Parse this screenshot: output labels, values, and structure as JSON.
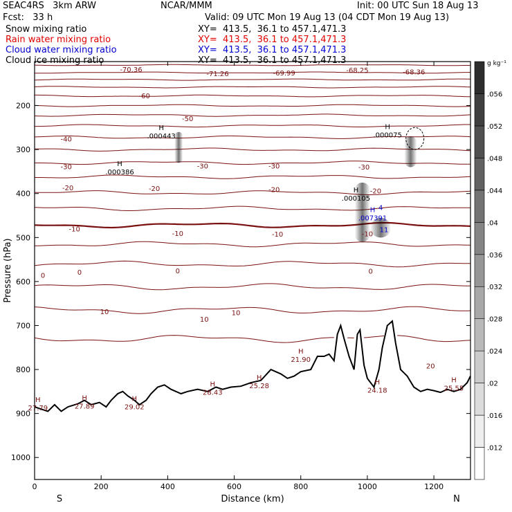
{
  "header": {
    "model": "SEAC4RS   3km ARW",
    "center": "NCAR/MMM",
    "init": "Init: 00 UTC Sun 18 Aug 13",
    "fcst": "Fcst:   33 h",
    "valid": "Valid: 09 UTC Mon 19 Aug 13 (04 CDT Mon 19 Aug 13)",
    "fields": [
      {
        "label": "Snow mixing ratio",
        "xy": "XY=  413.5,  36.1 to 457.1,471.3",
        "color": "#000000"
      },
      {
        "label": "Rain water mixing ratio",
        "xy": "XY=  413.5,  36.1 to 457.1,471.3",
        "color": "#e00000"
      },
      {
        "label": "Cloud water mixing ratio",
        "xy": "XY=  413.5,  36.1 to 457.1,471.3",
        "color": "#0000d0"
      },
      {
        "label": "Cloud ice mixing ratio",
        "xy": "XY=  413.5,  36.1 to 457.1,471.3",
        "color": "#000000"
      }
    ]
  },
  "chart_data": {
    "type": "cross-section",
    "xlabel": "Distance (km)",
    "ylabel": "Pressure (hPa)",
    "xlim": [
      0,
      1310
    ],
    "ylim": [
      1050,
      100
    ],
    "x_ticks": [
      0,
      200,
      400,
      600,
      800,
      1000,
      1200
    ],
    "y_ticks": [
      200,
      300,
      400,
      500,
      600,
      700,
      800,
      900,
      1000
    ],
    "x_end_labels": {
      "left": "S",
      "right": "N"
    },
    "colorbar": {
      "unit": "g kg⁻¹",
      "ticks": [
        0.012,
        0.016,
        0.02,
        0.024,
        0.028,
        0.032,
        0.036,
        0.04,
        0.044,
        0.048,
        0.052,
        0.056
      ],
      "tick_labels": [
        ".012",
        ".016",
        ".02",
        ".024",
        ".028",
        ".032",
        ".036",
        ".04",
        ".044",
        ".048",
        ".052",
        ".056"
      ]
    },
    "temperature_contours": {
      "color": "#7a1010",
      "interval_c": 5,
      "levels": [
        {
          "t": -70,
          "p": 108
        },
        {
          "t": -65,
          "p": 125
        },
        {
          "t": -60,
          "p": 141
        },
        {
          "t": -55,
          "p": 158
        },
        {
          "t": -50,
          "p": 178
        },
        {
          "t": -45,
          "p": 200
        },
        {
          "t": -40,
          "p": 222
        },
        {
          "t": -35,
          "p": 246
        },
        {
          "t": -30,
          "p": 272
        },
        {
          "t": -25,
          "p": 300
        },
        {
          "t": -20,
          "p": 330
        },
        {
          "t": -15,
          "p": 362
        },
        {
          "t": -10,
          "p": 398
        },
        {
          "t": -5,
          "p": 434
        },
        {
          "t": 0,
          "p": 472
        },
        {
          "t": 5,
          "p": 515
        },
        {
          "t": 10,
          "p": 560
        },
        {
          "t": 15,
          "p": 612
        },
        {
          "t": 20,
          "p": 665
        },
        {
          "t": 25,
          "p": 730
        }
      ],
      "labels": [
        {
          "text": "-70.36",
          "x": 290,
          "p": 117
        },
        {
          "text": "-71.26",
          "x": 550,
          "p": 127
        },
        {
          "text": "-69.99",
          "x": 750,
          "p": 125
        },
        {
          "text": "-68.25",
          "x": 970,
          "p": 119
        },
        {
          "text": "-68.36",
          "x": 1140,
          "p": 123
        },
        {
          "text": "-60",
          "x": 330,
          "p": 177
        },
        {
          "text": "-50",
          "x": 460,
          "p": 229
        },
        {
          "text": "-40",
          "x": 95,
          "p": 275
        },
        {
          "text": "-30",
          "x": 95,
          "p": 338
        },
        {
          "text": "-30",
          "x": 505,
          "p": 337
        },
        {
          "text": "-30",
          "x": 720,
          "p": 337
        },
        {
          "text": "-30",
          "x": 990,
          "p": 339
        },
        {
          "text": "-20",
          "x": 100,
          "p": 386
        },
        {
          "text": "-20",
          "x": 360,
          "p": 388
        },
        {
          "text": "-20",
          "x": 720,
          "p": 390
        },
        {
          "text": "-20",
          "x": 1025,
          "p": 393
        },
        {
          "text": "-10",
          "x": 120,
          "p": 480
        },
        {
          "text": "-10",
          "x": 430,
          "p": 490
        },
        {
          "text": "-10",
          "x": 730,
          "p": 492
        },
        {
          "text": "-10",
          "x": 1000,
          "p": 491
        },
        {
          "text": "0",
          "x": 25,
          "p": 585
        },
        {
          "text": "0",
          "x": 135,
          "p": 578
        },
        {
          "text": "0",
          "x": 430,
          "p": 575
        },
        {
          "text": "0",
          "x": 1010,
          "p": 576
        },
        {
          "text": "10",
          "x": 210,
          "p": 668
        },
        {
          "text": "10",
          "x": 510,
          "p": 685
        },
        {
          "text": "10",
          "x": 605,
          "p": 670
        },
        {
          "text": "20",
          "x": 1190,
          "p": 791
        }
      ]
    },
    "terrain_surface_p": [
      [
        0,
        885
      ],
      [
        20,
        890
      ],
      [
        40,
        895
      ],
      [
        60,
        880
      ],
      [
        80,
        895
      ],
      [
        100,
        885
      ],
      [
        130,
        878
      ],
      [
        150,
        870
      ],
      [
        170,
        880
      ],
      [
        195,
        875
      ],
      [
        215,
        885
      ],
      [
        230,
        870
      ],
      [
        250,
        855
      ],
      [
        265,
        850
      ],
      [
        280,
        860
      ],
      [
        300,
        870
      ],
      [
        315,
        880
      ],
      [
        335,
        870
      ],
      [
        350,
        855
      ],
      [
        370,
        840
      ],
      [
        390,
        835
      ],
      [
        410,
        845
      ],
      [
        440,
        855
      ],
      [
        460,
        850
      ],
      [
        490,
        845
      ],
      [
        520,
        850
      ],
      [
        545,
        840
      ],
      [
        565,
        845
      ],
      [
        590,
        840
      ],
      [
        620,
        838
      ],
      [
        650,
        830
      ],
      [
        680,
        825
      ],
      [
        710,
        800
      ],
      [
        740,
        810
      ],
      [
        760,
        820
      ],
      [
        780,
        815
      ],
      [
        800,
        805
      ],
      [
        830,
        800
      ],
      [
        850,
        770
      ],
      [
        870,
        770
      ],
      [
        885,
        765
      ],
      [
        900,
        780
      ],
      [
        910,
        720
      ],
      [
        920,
        700
      ],
      [
        930,
        730
      ],
      [
        945,
        770
      ],
      [
        960,
        800
      ],
      [
        970,
        720
      ],
      [
        978,
        710
      ],
      [
        990,
        790
      ],
      [
        1000,
        820
      ],
      [
        1020,
        840
      ],
      [
        1035,
        800
      ],
      [
        1045,
        750
      ],
      [
        1060,
        700
      ],
      [
        1075,
        690
      ],
      [
        1085,
        740
      ],
      [
        1100,
        800
      ],
      [
        1120,
        815
      ],
      [
        1140,
        840
      ],
      [
        1160,
        850
      ],
      [
        1180,
        845
      ],
      [
        1200,
        848
      ],
      [
        1220,
        852
      ],
      [
        1240,
        845
      ],
      [
        1260,
        850
      ],
      [
        1280,
        845
      ],
      [
        1300,
        830
      ],
      [
        1310,
        815
      ]
    ],
    "surface_highs": [
      {
        "text": "27.79",
        "x": 10,
        "p": 880
      },
      {
        "text": "27.89",
        "x": 150,
        "p": 876
      },
      {
        "text": "29.02",
        "x": 300,
        "p": 878
      },
      {
        "text": "28.43",
        "x": 535,
        "p": 845
      },
      {
        "text": "25.28",
        "x": 675,
        "p": 830
      },
      {
        "text": "21.90",
        "x": 800,
        "p": 770
      },
      {
        "text": "24.18",
        "x": 1030,
        "p": 840
      },
      {
        "text": "25.55",
        "x": 1260,
        "p": 835
      }
    ],
    "mixing_ratio_maxima": [
      {
        "text": ".000443",
        "x": 360,
        "p": 268,
        "color": "#000000"
      },
      {
        "text": ".000386",
        "x": 235,
        "p": 350,
        "color": "#000000"
      },
      {
        "text": ".000075",
        "x": 1040,
        "p": 266,
        "color": "#000000"
      },
      {
        "text": ".000105",
        "x": 945,
        "p": 410,
        "color": "#000000"
      },
      {
        "text": ".007391",
        "x": 995,
        "p": 455,
        "color": "#0000d0"
      }
    ],
    "snow_shading": [
      {
        "x": 433,
        "p_top": 260,
        "p_bot": 330,
        "width": 12
      },
      {
        "x": 985,
        "p_top": 375,
        "p_bot": 510,
        "width": 22
      },
      {
        "x": 1040,
        "p_top": 455,
        "p_bot": 500,
        "width": 30
      },
      {
        "x": 1130,
        "p_top": 270,
        "p_bot": 340,
        "width": 18
      }
    ],
    "cloud_ice_outline": {
      "x": 1143,
      "p_top": 250,
      "p_bot": 300
    },
    "cloud_water_labels": [
      {
        "text": "4",
        "x": 1040,
        "p": 437
      },
      {
        "text": "11",
        "x": 1050,
        "p": 488
      }
    ]
  }
}
